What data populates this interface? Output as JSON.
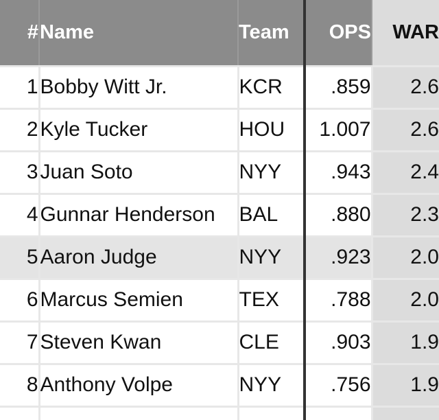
{
  "table": {
    "headers": {
      "rank": "#",
      "name": "Name",
      "team": "Team",
      "ops": "OPS",
      "war": "WAR"
    },
    "rows": [
      {
        "rank": "1",
        "name": "Bobby Witt Jr.",
        "team": "KCR",
        "ops": ".859",
        "war": "2.6"
      },
      {
        "rank": "2",
        "name": "Kyle Tucker",
        "team": "HOU",
        "ops": "1.007",
        "war": "2.6"
      },
      {
        "rank": "3",
        "name": "Juan Soto",
        "team": "NYY",
        "ops": ".943",
        "war": "2.4"
      },
      {
        "rank": "4",
        "name": "Gunnar Henderson",
        "team": "BAL",
        "ops": ".880",
        "war": "2.3"
      },
      {
        "rank": "5",
        "name": "Aaron Judge",
        "team": "NYY",
        "ops": ".923",
        "war": "2.0"
      },
      {
        "rank": "6",
        "name": "Marcus Semien",
        "team": "TEX",
        "ops": ".788",
        "war": "2.0"
      },
      {
        "rank": "7",
        "name": "Steven Kwan",
        "team": "CLE",
        "ops": ".903",
        "war": "1.9"
      },
      {
        "rank": "8",
        "name": "Anthony Volpe",
        "team": "NYY",
        "ops": ".756",
        "war": "1.9"
      }
    ],
    "highlighted_row": "5",
    "colors": {
      "header_background": "#8b8b8b",
      "header_text": "#ffffff",
      "war_column_background": "#dcdcdc",
      "highlight_row_background": "#e4e4e4",
      "divider_line": "#333333",
      "cell_background": "#ffffff",
      "grid_lines": "#e7e7e7"
    }
  }
}
